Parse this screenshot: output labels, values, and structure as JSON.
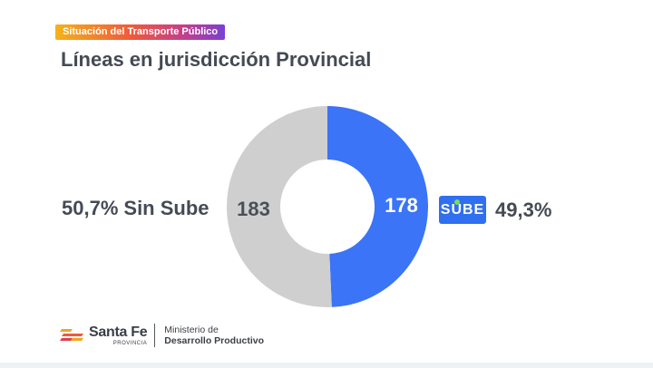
{
  "header": {
    "tag": "Situación del Transporte Público",
    "title": "Líneas en jurisdicción Provincial"
  },
  "chart_data": {
    "type": "pie",
    "donut": true,
    "categories": [
      "Sin Sube",
      "SUBE"
    ],
    "values": [
      183,
      178
    ],
    "percent_labels": [
      "50,7%",
      "49,3%"
    ],
    "colors": [
      "#cfcfcf",
      "#3b74f6"
    ],
    "value_label_colors": [
      "#4a4f58",
      "#ffffff"
    ]
  },
  "labels": {
    "left_percent": "50,7%",
    "left_text": "Sin Sube",
    "left_count": "183",
    "right_count": "178",
    "right_percent": "49,3%",
    "sube_logo": {
      "s": "S",
      "u": "U",
      "be": "BE"
    }
  },
  "footer": {
    "brand": "Santa Fe",
    "brand_sub": "PROVINCIA",
    "ministry_line1": "Ministerio de",
    "ministry_line2": "Desarrollo Productivo"
  }
}
